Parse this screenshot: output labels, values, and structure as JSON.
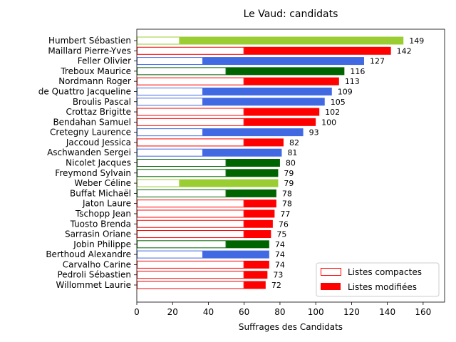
{
  "chart_data": {
    "type": "bar",
    "orientation": "horizontal",
    "stacked": true,
    "title": "Le Vaud: candidats",
    "xlabel": "Suffrages des Candidats",
    "ylabel": "",
    "xlim": [
      0,
      172
    ],
    "xticks": [
      0,
      20,
      40,
      60,
      80,
      100,
      120,
      140,
      160
    ],
    "grid": false,
    "legend_position": "lower-right",
    "legend": [
      {
        "label": "Listes compactes",
        "style": "outline"
      },
      {
        "label": "Listes modifiées",
        "style": "filled"
      }
    ],
    "categories": [
      "Humbert Sébastien",
      "Maillard Pierre-Yves",
      "Feller Olivier",
      "Treboux Maurice",
      "Nordmann Roger",
      "de Quattro Jacqueline",
      "Broulis Pascal",
      "Crottaz Brigitte",
      "Bendahan Samuel",
      "Cretegny Laurence",
      "Jaccoud Jessica",
      "Aschwanden Sergei",
      "Nicolet Jacques",
      "Freymond Sylvain",
      "Weber Céline",
      "Buffat Michaël",
      "Jaton Laure",
      "Tschopp Jean",
      "Tuosto Brenda",
      "Sarrasin Oriane",
      "Jobin Philippe",
      "Berthoud Alexandre",
      "Carvalho Carine",
      "Pedroli Sébastien",
      "Willommet Laurie"
    ],
    "series": [
      {
        "name": "Listes compactes",
        "values": [
          24,
          60,
          37,
          50,
          60,
          37,
          37,
          60,
          60,
          37,
          60,
          37,
          50,
          50,
          24,
          50,
          60,
          60,
          60,
          60,
          50,
          37,
          60,
          60,
          60
        ]
      },
      {
        "name": "Listes modifiées",
        "values": [
          125,
          82,
          90,
          66,
          53,
          72,
          68,
          42,
          40,
          56,
          22,
          44,
          30,
          29,
          55,
          28,
          18,
          17,
          16,
          15,
          24,
          37,
          14,
          13,
          12
        ]
      }
    ],
    "totals": [
      149,
      142,
      127,
      116,
      113,
      109,
      105,
      102,
      100,
      93,
      82,
      81,
      80,
      79,
      79,
      78,
      78,
      77,
      76,
      75,
      74,
      74,
      74,
      73,
      72
    ],
    "colors": [
      "#9acd32",
      "#ff0000",
      "#4169e1",
      "#006400",
      "#ff0000",
      "#4169e1",
      "#4169e1",
      "#ff0000",
      "#ff0000",
      "#4169e1",
      "#ff0000",
      "#4169e1",
      "#006400",
      "#006400",
      "#9acd32",
      "#006400",
      "#ff0000",
      "#ff0000",
      "#ff0000",
      "#ff0000",
      "#006400",
      "#4169e1",
      "#ff0000",
      "#ff0000",
      "#ff0000"
    ]
  }
}
